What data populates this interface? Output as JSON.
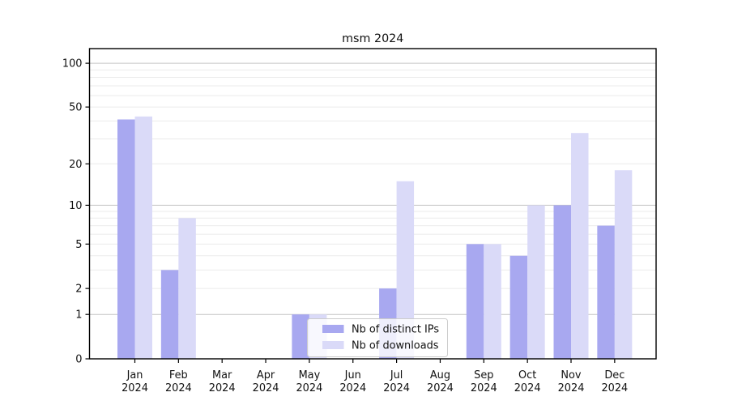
{
  "title": "msm 2024",
  "chart_data": {
    "type": "bar",
    "title": "msm 2024",
    "categories": [
      "Jan",
      "Feb",
      "Mar",
      "Apr",
      "May",
      "Jun",
      "Jul",
      "Aug",
      "Sep",
      "Oct",
      "Nov",
      "Dec"
    ],
    "year": "2024",
    "series": [
      {
        "name": "Nb of distinct IPs",
        "color": "#a8a8f0",
        "values": [
          41,
          3,
          0,
          0,
          1,
          0,
          2,
          0,
          5,
          4,
          10,
          7
        ]
      },
      {
        "name": "Nb of downloads",
        "color": "#dadaf8",
        "values": [
          43,
          8,
          0,
          0,
          1,
          0,
          15,
          0,
          5,
          10,
          33,
          18
        ]
      }
    ],
    "xlabel": "",
    "ylabel": "",
    "yscale": "log1p",
    "ylim": [
      0,
      126
    ],
    "yticks": [
      0,
      1,
      2,
      5,
      10,
      20,
      50,
      100
    ],
    "major_gridline_values": [
      1,
      10,
      100
    ],
    "minor_gridline_values": [
      2,
      3,
      4,
      5,
      6,
      7,
      8,
      9,
      20,
      30,
      40,
      50,
      60,
      70,
      80,
      90
    ],
    "grid": "on",
    "legend_position": "lower center",
    "colors": {
      "major_grid": "#c4c4c4",
      "minor_grid": "#ebebeb",
      "spine": "#000000",
      "legend_border": "#cccccc",
      "text": "#111111"
    }
  }
}
